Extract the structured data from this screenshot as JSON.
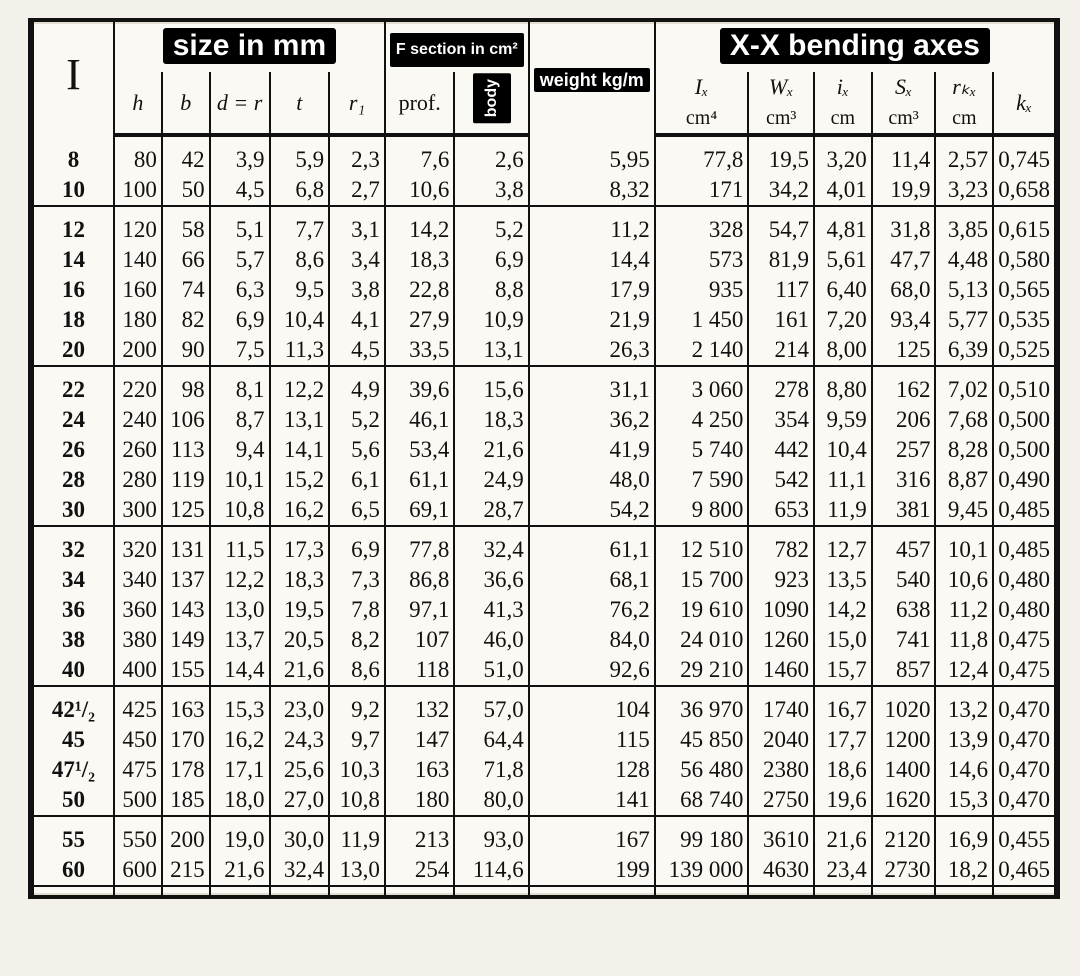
{
  "headers": {
    "I": "I",
    "size_label": "size in mm",
    "F_label": "F section in cm²",
    "weight_label": "weight kg/m",
    "body_label": "body",
    "X_label": "X-X bending axes",
    "h": "h",
    "b": "b",
    "d": "d = r",
    "t": "t",
    "r1": "r₁",
    "prof": "prof.",
    "Ix": "Iₓ",
    "Ix_u": "cm⁴",
    "Wx": "Wₓ",
    "Wx_u": "cm³",
    "ix": "iₓ",
    "ix_u": "cm",
    "Sx": "Sₓ",
    "Sx_u": "cm³",
    "rk": "rₖₓ",
    "rk_u": "cm",
    "kx": "kₓ"
  },
  "groups": [
    [
      [
        "8",
        "80",
        "42",
        "3,9",
        "5,9",
        "2,3",
        "7,6",
        "2,6",
        "5,95",
        "77,8",
        "19,5",
        "3,20",
        "11,4",
        "2,57",
        "0,745"
      ],
      [
        "10",
        "100",
        "50",
        "4,5",
        "6,8",
        "2,7",
        "10,6",
        "3,8",
        "8,32",
        "171",
        "34,2",
        "4,01",
        "19,9",
        "3,23",
        "0,658"
      ]
    ],
    [
      [
        "12",
        "120",
        "58",
        "5,1",
        "7,7",
        "3,1",
        "14,2",
        "5,2",
        "11,2",
        "328",
        "54,7",
        "4,81",
        "31,8",
        "3,85",
        "0,615"
      ],
      [
        "14",
        "140",
        "66",
        "5,7",
        "8,6",
        "3,4",
        "18,3",
        "6,9",
        "14,4",
        "573",
        "81,9",
        "5,61",
        "47,7",
        "4,48",
        "0,580"
      ],
      [
        "16",
        "160",
        "74",
        "6,3",
        "9,5",
        "3,8",
        "22,8",
        "8,8",
        "17,9",
        "935",
        "117",
        "6,40",
        "68,0",
        "5,13",
        "0,565"
      ],
      [
        "18",
        "180",
        "82",
        "6,9",
        "10,4",
        "4,1",
        "27,9",
        "10,9",
        "21,9",
        "1 450",
        "161",
        "7,20",
        "93,4",
        "5,77",
        "0,535"
      ],
      [
        "20",
        "200",
        "90",
        "7,5",
        "11,3",
        "4,5",
        "33,5",
        "13,1",
        "26,3",
        "2 140",
        "214",
        "8,00",
        "125",
        "6,39",
        "0,525"
      ]
    ],
    [
      [
        "22",
        "220",
        "98",
        "8,1",
        "12,2",
        "4,9",
        "39,6",
        "15,6",
        "31,1",
        "3 060",
        "278",
        "8,80",
        "162",
        "7,02",
        "0,510"
      ],
      [
        "24",
        "240",
        "106",
        "8,7",
        "13,1",
        "5,2",
        "46,1",
        "18,3",
        "36,2",
        "4 250",
        "354",
        "9,59",
        "206",
        "7,68",
        "0,500"
      ],
      [
        "26",
        "260",
        "113",
        "9,4",
        "14,1",
        "5,6",
        "53,4",
        "21,6",
        "41,9",
        "5 740",
        "442",
        "10,4",
        "257",
        "8,28",
        "0,500"
      ],
      [
        "28",
        "280",
        "119",
        "10,1",
        "15,2",
        "6,1",
        "61,1",
        "24,9",
        "48,0",
        "7 590",
        "542",
        "11,1",
        "316",
        "8,87",
        "0,490"
      ],
      [
        "30",
        "300",
        "125",
        "10,8",
        "16,2",
        "6,5",
        "69,1",
        "28,7",
        "54,2",
        "9 800",
        "653",
        "11,9",
        "381",
        "9,45",
        "0,485"
      ]
    ],
    [
      [
        "32",
        "320",
        "131",
        "11,5",
        "17,3",
        "6,9",
        "77,8",
        "32,4",
        "61,1",
        "12 510",
        "782",
        "12,7",
        "457",
        "10,1",
        "0,485"
      ],
      [
        "34",
        "340",
        "137",
        "12,2",
        "18,3",
        "7,3",
        "86,8",
        "36,6",
        "68,1",
        "15 700",
        "923",
        "13,5",
        "540",
        "10,6",
        "0,480"
      ],
      [
        "36",
        "360",
        "143",
        "13,0",
        "19,5",
        "7,8",
        "97,1",
        "41,3",
        "76,2",
        "19 610",
        "1090",
        "14,2",
        "638",
        "11,2",
        "0,480"
      ],
      [
        "38",
        "380",
        "149",
        "13,7",
        "20,5",
        "8,2",
        "107",
        "46,0",
        "84,0",
        "24 010",
        "1260",
        "15,0",
        "741",
        "11,8",
        "0,475"
      ],
      [
        "40",
        "400",
        "155",
        "14,4",
        "21,6",
        "8,6",
        "118",
        "51,0",
        "92,6",
        "29 210",
        "1460",
        "15,7",
        "857",
        "12,4",
        "0,475"
      ]
    ],
    [
      [
        "42¹/₂",
        "425",
        "163",
        "15,3",
        "23,0",
        "9,2",
        "132",
        "57,0",
        "104",
        "36 970",
        "1740",
        "16,7",
        "1020",
        "13,2",
        "0,470"
      ],
      [
        "45",
        "450",
        "170",
        "16,2",
        "24,3",
        "9,7",
        "147",
        "64,4",
        "115",
        "45 850",
        "2040",
        "17,7",
        "1200",
        "13,9",
        "0,470"
      ],
      [
        "47¹/₂",
        "475",
        "178",
        "17,1",
        "25,6",
        "10,3",
        "163",
        "71,8",
        "128",
        "56 480",
        "2380",
        "18,6",
        "1400",
        "14,6",
        "0,470"
      ],
      [
        "50",
        "500",
        "185",
        "18,0",
        "27,0",
        "10,8",
        "180",
        "80,0",
        "141",
        "68 740",
        "2750",
        "19,6",
        "1620",
        "15,3",
        "0,470"
      ]
    ],
    [
      [
        "55",
        "550",
        "200",
        "19,0",
        "30,0",
        "11,9",
        "213",
        "93,0",
        "167",
        "99 180",
        "3610",
        "21,6",
        "2120",
        "16,9",
        "0,455"
      ],
      [
        "60",
        "600",
        "215",
        "21,6",
        "32,4",
        "13,0",
        "254",
        "114,6",
        "199",
        "139 000",
        "4630",
        "23,4",
        "2730",
        "18,2",
        "0,465"
      ]
    ]
  ]
}
